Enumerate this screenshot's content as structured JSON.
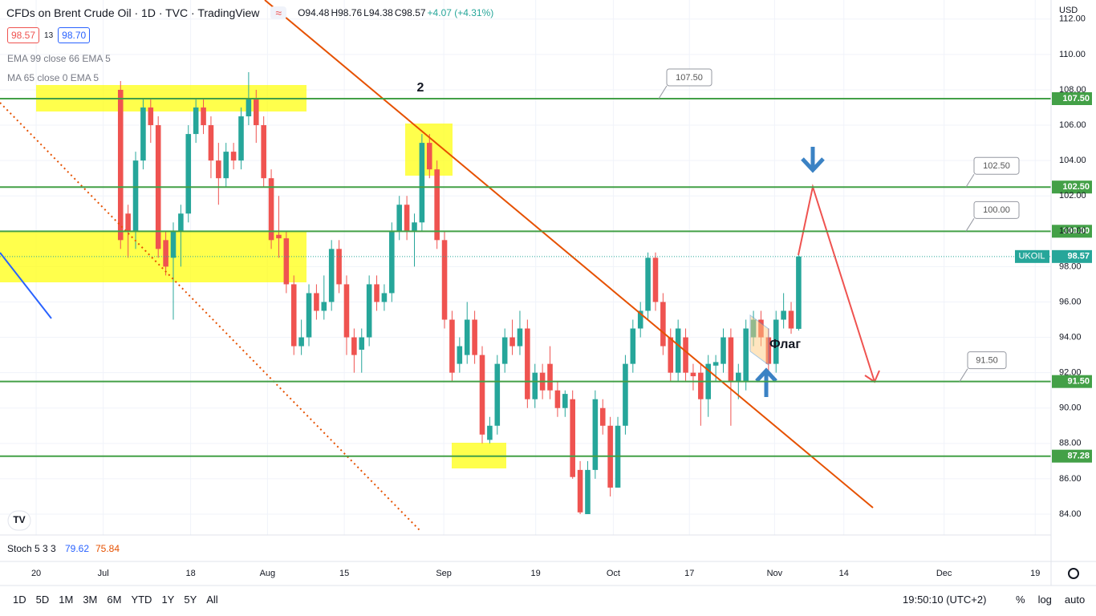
{
  "header": {
    "title": "CFDs on Brent Crude Oil · 1D · TVC · TradingView",
    "ohlc": [
      "O94.48",
      "H98.76",
      "L94.38",
      "C98.57",
      "+4.07 (+4.31%)"
    ],
    "sell": "98.57",
    "spread": "13",
    "buy": "98.70",
    "indicators": [
      "EMA 99 close 66 EMA 5",
      "MA 65 close 0 EMA 5"
    ],
    "currency": "USD"
  },
  "chart_data": {
    "type": "candlestick",
    "up_color": "#26a69a",
    "down_color": "#ef5350",
    "ohlc": [
      [
        108,
        108.5,
        99,
        99.5
      ],
      [
        101,
        101.5,
        98.5,
        100
      ],
      [
        100,
        104.5,
        99,
        104
      ],
      [
        104,
        107.5,
        103.5,
        107
      ],
      [
        107,
        107.5,
        105,
        106
      ],
      [
        106,
        106.5,
        98.5,
        99
      ],
      [
        99.5,
        100,
        97.5,
        98
      ],
      [
        98.5,
        100.5,
        95,
        100
      ],
      [
        100,
        101.5,
        98,
        101
      ],
      [
        101,
        106,
        100.5,
        105.5
      ],
      [
        105.5,
        107.5,
        105,
        107
      ],
      [
        107,
        107.5,
        105.5,
        106
      ],
      [
        106,
        106.5,
        103,
        104
      ],
      [
        104,
        105,
        101.5,
        103
      ],
      [
        103,
        105,
        102.5,
        104.5
      ],
      [
        104.5,
        105,
        103.5,
        104
      ],
      [
        104,
        107,
        103.5,
        106.5
      ],
      [
        106.5,
        109,
        106,
        107.5
      ],
      [
        107.5,
        108,
        105,
        106
      ],
      [
        106,
        106.5,
        102.5,
        103
      ],
      [
        103,
        103.5,
        99,
        99.5
      ],
      [
        99.8,
        102,
        98.5,
        99.6
      ],
      [
        99.6,
        100,
        96.5,
        97
      ],
      [
        97,
        97.5,
        93,
        93.5
      ],
      [
        93.5,
        95,
        93,
        94
      ],
      [
        94,
        97,
        93.5,
        96.5
      ],
      [
        96.5,
        97,
        95,
        95.5
      ],
      [
        95.5,
        97.5,
        95,
        96
      ],
      [
        96,
        99.5,
        95.5,
        99
      ],
      [
        99,
        99.5,
        96.5,
        97
      ],
      [
        97,
        97.5,
        93,
        94
      ],
      [
        94,
        94.5,
        92,
        93
      ],
      [
        93.3,
        94.5,
        92,
        94
      ],
      [
        94,
        97.5,
        93.5,
        97
      ],
      [
        97,
        97.5,
        95.5,
        96
      ],
      [
        96,
        97,
        95.5,
        96.5
      ],
      [
        96.5,
        100.5,
        96,
        100
      ],
      [
        100,
        102,
        99.5,
        101.5
      ],
      [
        101.5,
        102,
        99.5,
        100
      ],
      [
        100,
        101,
        98,
        100.5
      ],
      [
        100.5,
        105.5,
        100,
        105
      ],
      [
        105,
        105.5,
        103,
        103.5
      ],
      [
        103.5,
        104,
        99,
        99.5
      ],
      [
        99.5,
        100,
        94.5,
        95
      ],
      [
        95,
        95.5,
        91.5,
        92
      ],
      [
        92.5,
        94,
        92,
        93.5
      ],
      [
        93,
        96,
        92.5,
        95
      ],
      [
        95,
        95.5,
        92.5,
        93
      ],
      [
        93,
        93.5,
        88,
        88.5
      ],
      [
        88.2,
        89.5,
        88,
        89
      ],
      [
        89,
        93,
        88.5,
        92.5
      ],
      [
        92.5,
        94.5,
        92,
        94
      ],
      [
        94,
        95,
        93,
        93.5
      ],
      [
        93.5,
        95.5,
        93,
        94.5
      ],
      [
        94.5,
        95,
        90,
        90.5
      ],
      [
        90.5,
        92.5,
        90,
        92
      ],
      [
        92,
        92.5,
        90.5,
        91
      ],
      [
        92.5,
        93.5,
        90.5,
        91
      ],
      [
        91,
        91.5,
        89.5,
        90
      ],
      [
        90,
        91,
        89.5,
        90.8
      ],
      [
        90.5,
        91,
        86,
        86.1
      ],
      [
        86.5,
        87,
        84,
        84.1
      ],
      [
        84,
        87,
        84,
        86.5
      ],
      [
        86.5,
        91,
        86,
        90.5
      ],
      [
        90,
        90.5,
        88.5,
        89
      ],
      [
        89,
        89.5,
        85,
        85.5
      ],
      [
        85.5,
        89.5,
        85.5,
        89
      ],
      [
        89,
        93,
        88.5,
        92.5
      ],
      [
        92.5,
        95,
        92,
        94.5
      ],
      [
        94.5,
        96,
        94,
        95.5
      ],
      [
        95.5,
        98.8,
        95,
        98.5
      ],
      [
        98.5,
        98.8,
        95.5,
        96
      ],
      [
        96,
        96.5,
        93,
        93.5
      ],
      [
        94,
        94.5,
        91.5,
        92
      ],
      [
        92,
        95,
        91.5,
        94.5
      ],
      [
        94,
        94.5,
        91.5,
        92
      ],
      [
        92,
        92.5,
        91,
        91.8
      ],
      [
        92,
        92.5,
        89,
        90.5
      ],
      [
        90.5,
        93,
        89.5,
        92.5
      ],
      [
        92.4,
        93,
        91.5,
        92.6
      ],
      [
        92.5,
        94.5,
        92,
        94
      ],
      [
        94,
        94.5,
        89,
        91.5
      ],
      [
        91.5,
        92.5,
        90.5,
        92
      ],
      [
        91.5,
        95,
        91,
        94.5
      ],
      [
        94,
        95.5,
        93.5,
        95
      ],
      [
        95,
        95.5,
        93.5,
        94
      ],
      [
        94,
        94.5,
        92,
        92.5
      ],
      [
        92.5,
        95.5,
        92,
        95
      ],
      [
        95,
        96.5,
        94.5,
        95.5
      ],
      [
        95.5,
        96,
        94.2,
        94.5
      ],
      [
        94.48,
        98.76,
        94.38,
        98.57
      ]
    ],
    "xlim": [
      -16.0,
      123.5
    ],
    "xticks": [
      {
        "value": -11.2,
        "label": "20"
      },
      {
        "value": -2.3,
        "label": "Jul"
      },
      {
        "value": 9.3,
        "label": "18"
      },
      {
        "value": 19.5,
        "label": "Aug"
      },
      {
        "value": 29.7,
        "label": "15"
      },
      {
        "value": 42.9,
        "label": "Sep"
      },
      {
        "value": 55.1,
        "label": "19"
      },
      {
        "value": 65.4,
        "label": "Oct"
      },
      {
        "value": 75.5,
        "label": "17"
      },
      {
        "value": 86.8,
        "label": "Nov"
      },
      {
        "value": 96.0,
        "label": "14"
      },
      {
        "value": 109.3,
        "label": "Dec"
      },
      {
        "value": 121.4,
        "label": "19"
      }
    ],
    "ylim": [
      82.82,
      113.08
    ],
    "yticks": [
      {
        "value": 84,
        "label": "84.00"
      },
      {
        "value": 86,
        "label": "86.00"
      },
      {
        "value": 88,
        "label": "88.00"
      },
      {
        "value": 90,
        "label": "90.00"
      },
      {
        "value": 92,
        "label": "92.00"
      },
      {
        "value": 94,
        "label": "94.00"
      },
      {
        "value": 96,
        "label": "96.00"
      },
      {
        "value": 98,
        "label": "98.00"
      },
      {
        "value": 100,
        "label": "100.00"
      },
      {
        "value": 102,
        "label": "102.00"
      },
      {
        "value": 104,
        "label": "104.00"
      },
      {
        "value": 106,
        "label": "106.00"
      },
      {
        "value": 108,
        "label": "108.00"
      },
      {
        "value": 110,
        "label": "110.00"
      },
      {
        "value": 112,
        "label": "112.00"
      }
    ],
    "grid": true,
    "levels": [
      {
        "value": 107.5,
        "label": "107.50"
      },
      {
        "value": 102.5,
        "label": "102.50"
      },
      {
        "value": 100,
        "label": "100.00"
      },
      {
        "value": 91.5,
        "label": "91.50"
      },
      {
        "value": 87.28,
        "label": "87.28"
      }
    ],
    "level_color": "#43a047",
    "last_price": {
      "symbol": "UKOIL",
      "value": 98.57,
      "label": "98.57"
    },
    "annotations": [
      "2",
      "Флаг"
    ],
    "stoch": {
      "label": "Stoch 5 3 3",
      "k": "79.62",
      "d": "75.84"
    }
  },
  "toolbar": {
    "ranges": [
      "1D",
      "5D",
      "1M",
      "3M",
      "6M",
      "YTD",
      "1Y",
      "5Y",
      "All"
    ],
    "clock": "19:50:10 (UTC+2)",
    "options": [
      "%",
      "log",
      "auto"
    ]
  }
}
